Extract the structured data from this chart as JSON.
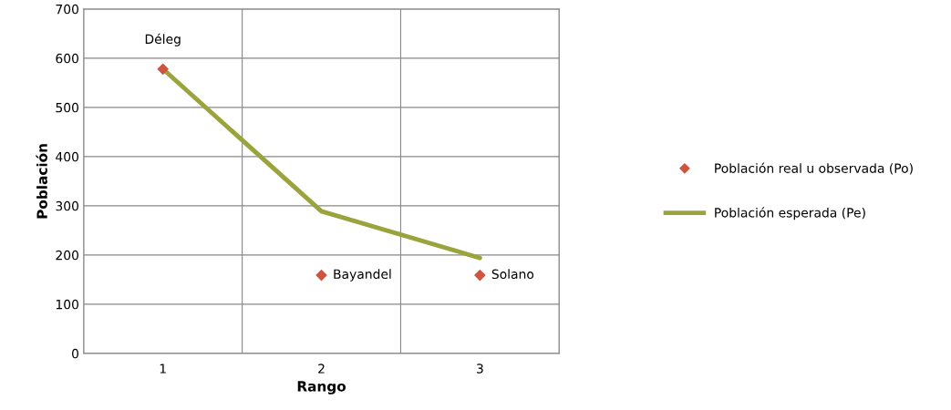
{
  "chart_data": {
    "type": "line",
    "xlabel": "Rango",
    "ylabel": "Población",
    "categories": [
      "1",
      "2",
      "3"
    ],
    "series": [
      {
        "name": "Población real u observada (Po)",
        "type": "scatter",
        "color": "#d0533f",
        "marker": "diamond",
        "values": [
          578,
          159,
          159
        ],
        "value_labels": [
          "Déleg",
          "Bayandel",
          "Solano"
        ]
      },
      {
        "name": "Población esperada (Pe)",
        "color": "#9aa33c",
        "marker": "none",
        "values": [
          578,
          289,
          194
        ]
      }
    ],
    "ylim": [
      0,
      700
    ],
    "yticks": [
      0,
      100,
      200,
      300,
      400,
      500,
      600,
      700
    ],
    "grid": true,
    "legend": "right"
  }
}
